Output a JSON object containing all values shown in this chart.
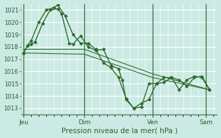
{
  "background_color": "#cceae4",
  "line_color": "#2d6a2d",
  "xlabel": "Pression niveau de la mer( hPa )",
  "ylim": [
    1012.5,
    1021.5
  ],
  "yticks": [
    1013,
    1014,
    1015,
    1016,
    1017,
    1018,
    1019,
    1020,
    1021
  ],
  "xtick_labels": [
    "Jeu",
    "Dim",
    "Ven",
    "Sam"
  ],
  "vline_positions": [
    0,
    8,
    17,
    24
  ],
  "series1_x": [
    0,
    0.5,
    1.0,
    1.5,
    2.5,
    3.5,
    4.5,
    5.0,
    6.0,
    6.5,
    7.5,
    8.5,
    9.5,
    10.5,
    11.5,
    12.5,
    13.0,
    13.5,
    14.5,
    15.5,
    16.5,
    17.5,
    18.5,
    19.5,
    20.5,
    21.5,
    22.5,
    23.5,
    24.5
  ],
  "series1_y": [
    1017.5,
    1018.1,
    1018.2,
    1018.4,
    1019.9,
    1021.0,
    1021.1,
    1020.7,
    1018.3,
    1018.2,
    1018.9,
    1018.0,
    1017.7,
    1017.8,
    1016.5,
    1016.2,
    1015.3,
    1013.7,
    1013.0,
    1013.4,
    1013.7,
    1015.0,
    1015.1,
    1015.5,
    1015.3,
    1014.8,
    1015.5,
    1015.6,
    1014.5
  ],
  "series2_x": [
    0,
    0.5,
    1.0,
    2.0,
    3.0,
    4.0,
    4.5,
    5.5,
    6.5,
    7.5,
    8.5,
    9.5,
    10.5,
    11.5,
    12.5,
    13.5,
    14.5,
    15.5,
    16.5,
    17.5,
    18.5,
    19.5,
    20.5,
    21.5,
    22.5,
    23.5,
    24.5
  ],
  "series2_y": [
    1017.5,
    1018.1,
    1018.5,
    1020.0,
    1021.0,
    1021.2,
    1021.4,
    1020.5,
    1019.0,
    1018.3,
    1018.3,
    1017.8,
    1016.7,
    1016.3,
    1015.5,
    1013.8,
    1013.0,
    1013.1,
    1015.0,
    1015.0,
    1015.5,
    1015.5,
    1014.5,
    1015.3,
    1015.6,
    1015.5,
    1014.5
  ],
  "series3_x": [
    0,
    8,
    17,
    24.5
  ],
  "series3_y": [
    1017.8,
    1017.8,
    1015.8,
    1014.5
  ],
  "series4_x": [
    0,
    8,
    17,
    24.5
  ],
  "series4_y": [
    1017.5,
    1017.4,
    1015.5,
    1014.5
  ]
}
